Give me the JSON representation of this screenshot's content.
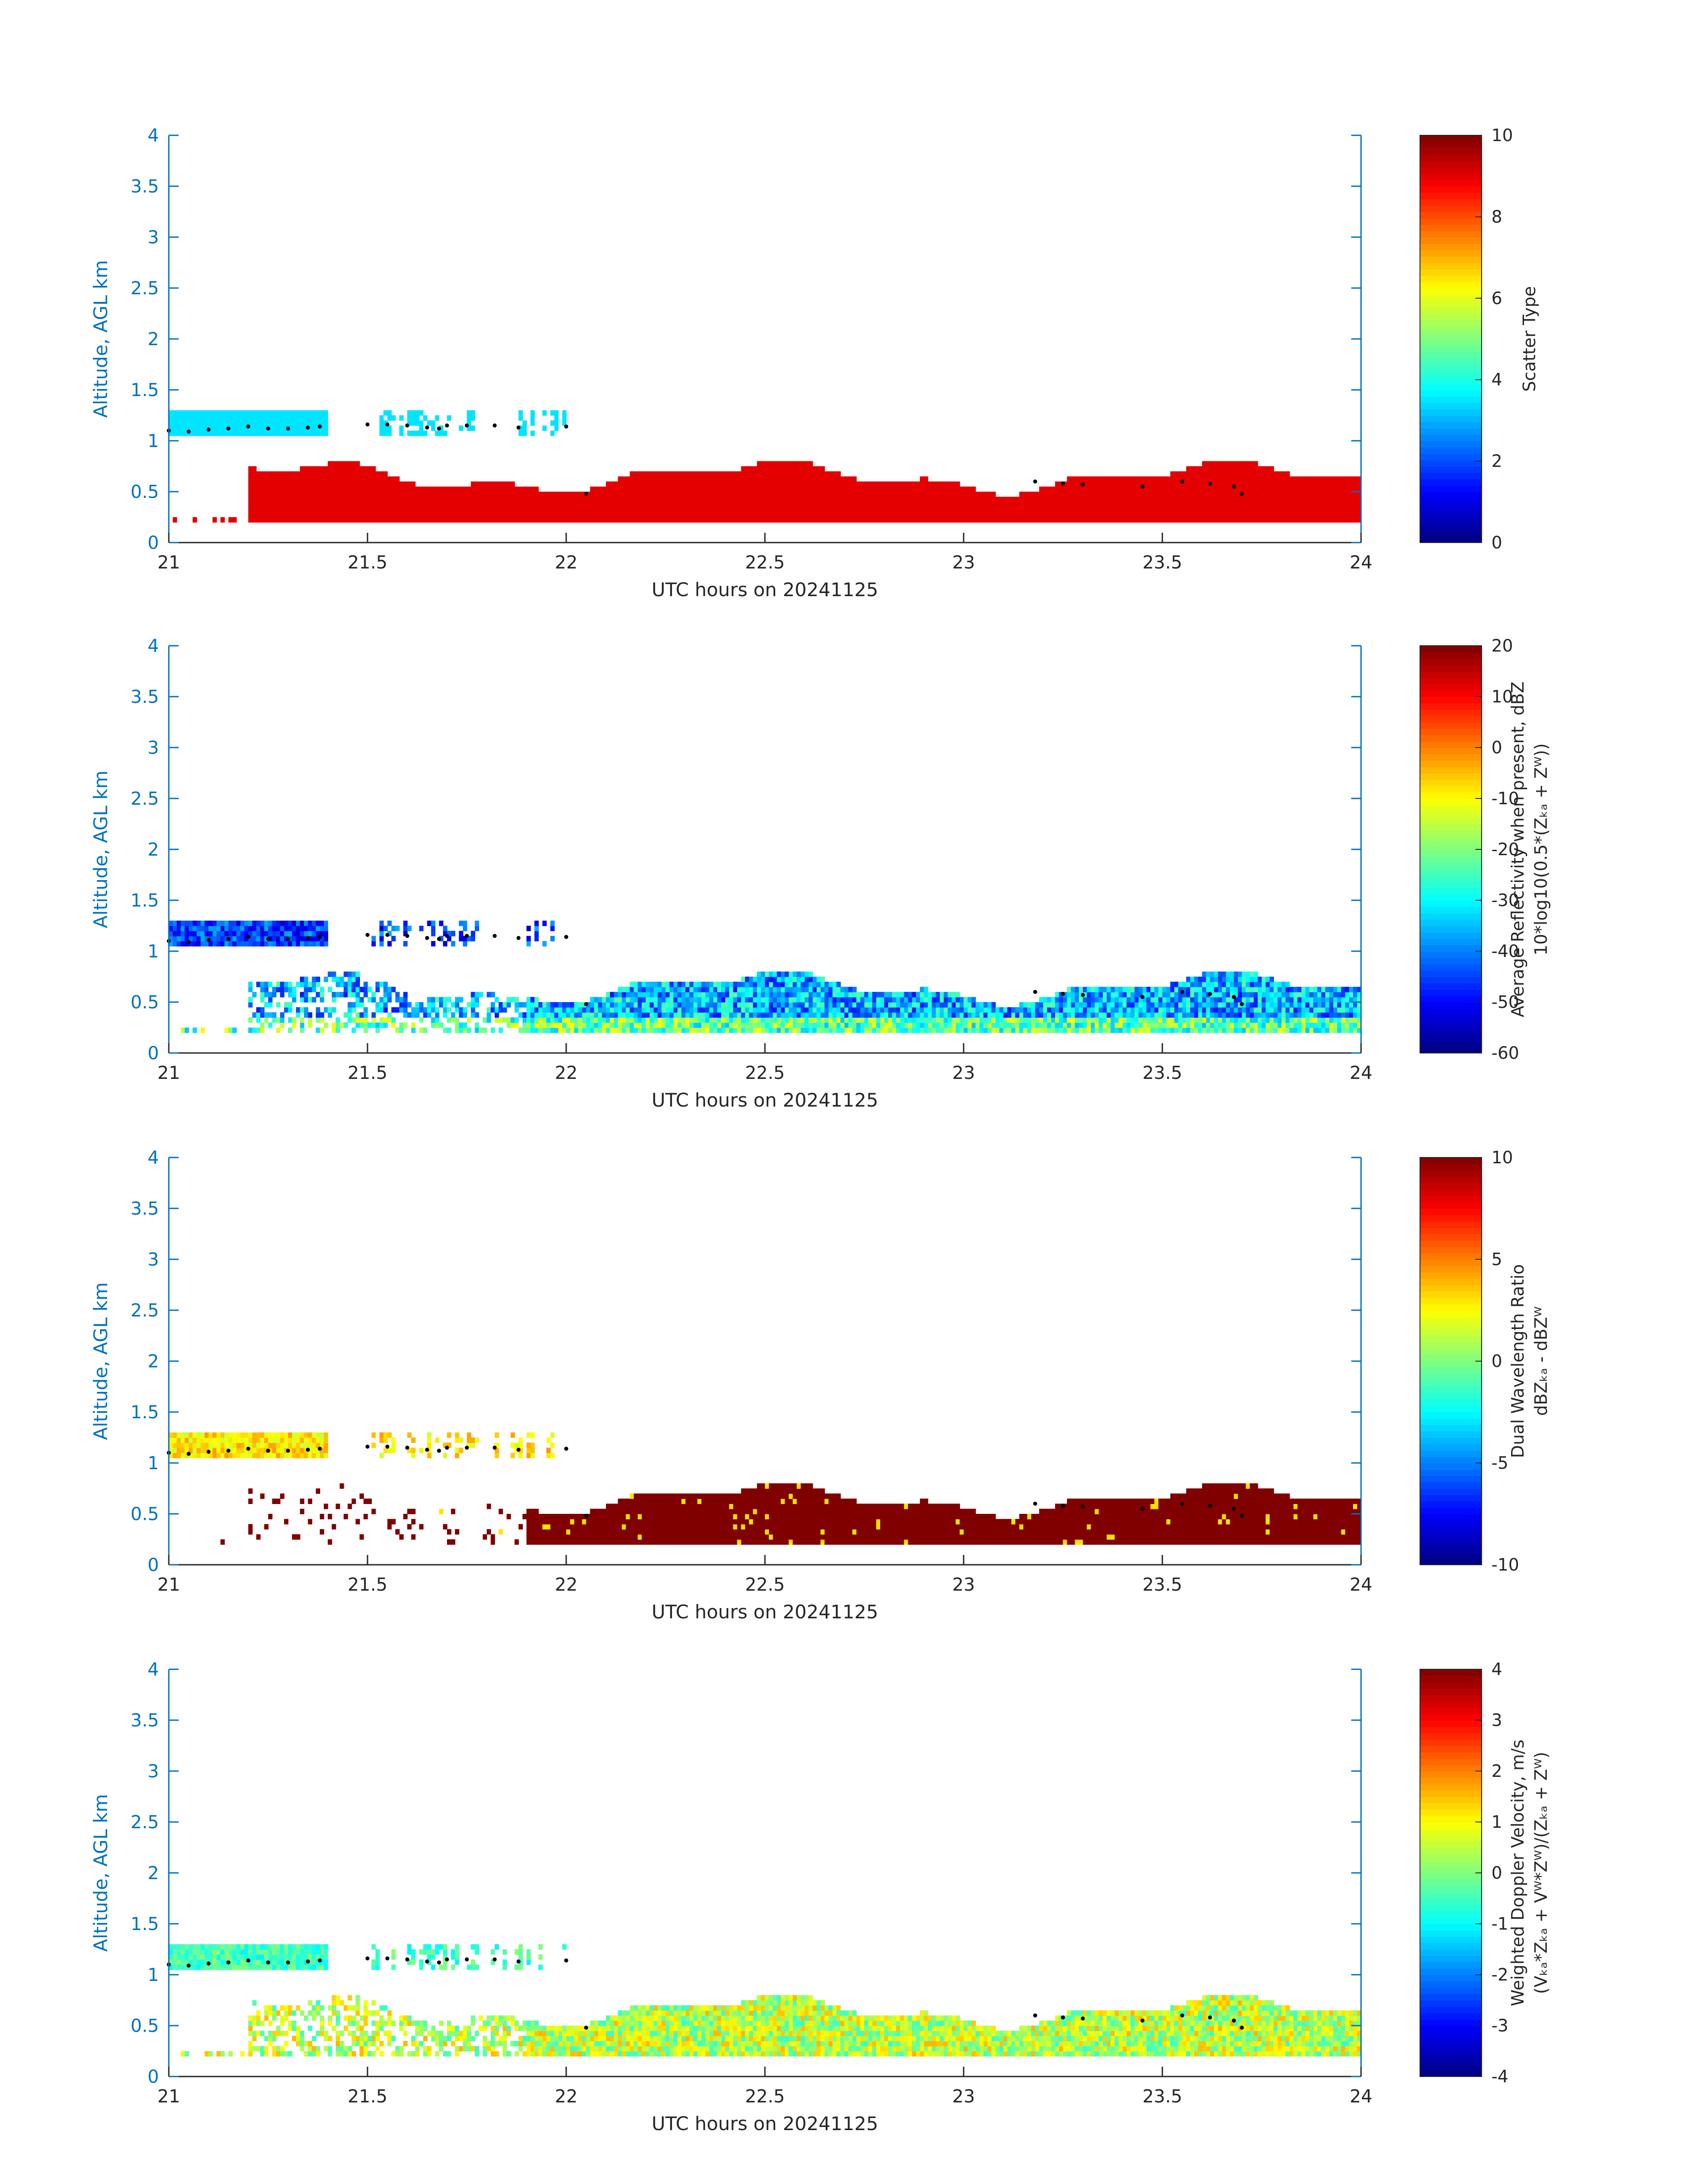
{
  "chart_data": [
    {
      "type": "heatmap",
      "xlabel": "UTC hours on 20241125",
      "ylabel": "Altitude, AGL km",
      "xlim": [
        21,
        24
      ],
      "ylim": [
        0,
        4
      ],
      "xticks": [
        "21",
        "21.5",
        "22",
        "22.5",
        "23",
        "23.5",
        "24"
      ],
      "yticks": [
        "0",
        "0.5",
        "1",
        "1.5",
        "2",
        "2.5",
        "3",
        "3.5",
        "4"
      ],
      "colorbar": {
        "label_lines": [
          "Scatter Type"
        ],
        "range": [
          0,
          10
        ],
        "ticks": [
          "0",
          "2",
          "4",
          "6",
          "8",
          "10"
        ],
        "colormap": "jet"
      },
      "dominant_values": [
        {
          "description": "near-surface echo 0.2-0.75 km",
          "value": 9
        },
        {
          "description": "cloud layer 1.0-1.3 km",
          "value": 3.5
        }
      ]
    },
    {
      "type": "heatmap",
      "xlabel": "UTC hours on 20241125",
      "ylabel": "Altitude, AGL km",
      "xlim": [
        21,
        24
      ],
      "ylim": [
        0,
        4
      ],
      "xticks": [
        "21",
        "21.5",
        "22",
        "22.5",
        "23",
        "23.5",
        "24"
      ],
      "yticks": [
        "0",
        "0.5",
        "1",
        "1.5",
        "2",
        "2.5",
        "3",
        "3.5",
        "4"
      ],
      "colorbar": {
        "label_lines": [
          "Average Reflectivity when present, dBZ",
          "10*log10(0.5*(Zₖₐ + Zᵂ))"
        ],
        "range": [
          -60,
          20
        ],
        "ticks": [
          "-60",
          "-50",
          "-40",
          "-30",
          "-20",
          "-10",
          "0",
          "10",
          "20"
        ],
        "colormap": "jet"
      },
      "dominant_values": [
        {
          "description": "near-surface echo 0.2-0.75 km",
          "value": -30
        },
        {
          "description": "cloud layer 1.0-1.3 km",
          "value": -45
        }
      ]
    },
    {
      "type": "heatmap",
      "xlabel": "UTC hours on 20241125",
      "ylabel": "Altitude, AGL km",
      "xlim": [
        21,
        24
      ],
      "ylim": [
        0,
        4
      ],
      "xticks": [
        "21",
        "21.5",
        "22",
        "22.5",
        "23",
        "23.5",
        "24"
      ],
      "yticks": [
        "0",
        "0.5",
        "1",
        "1.5",
        "2",
        "2.5",
        "3",
        "3.5",
        "4"
      ],
      "colorbar": {
        "label_lines": [
          "Dual Wavelength Ratio",
          "dBZₖₐ - dBZᵂ"
        ],
        "range": [
          -10,
          10
        ],
        "ticks": [
          "-10",
          "-5",
          "0",
          "5",
          "10"
        ],
        "colormap": "jet"
      },
      "dominant_values": [
        {
          "description": "near-surface echo 0.2-0.8 km",
          "value": 10
        },
        {
          "description": "cloud layer 1.0-1.3 km",
          "value": 3
        }
      ]
    },
    {
      "type": "heatmap",
      "xlabel": "UTC hours on 20241125",
      "ylabel": "Altitude, AGL km",
      "xlim": [
        21,
        24
      ],
      "ylim": [
        0,
        4
      ],
      "xticks": [
        "21",
        "21.5",
        "22",
        "22.5",
        "23",
        "23.5",
        "24"
      ],
      "yticks": [
        "0",
        "0.5",
        "1",
        "1.5",
        "2",
        "2.5",
        "3",
        "3.5",
        "4"
      ],
      "colorbar": {
        "label_lines": [
          "Weighted Doppler Velocity, m/s",
          "(Vₖₐ*Zₖₐ + Vᵂ*Zᵂ)/(Zₖₐ + Zᵂ)"
        ],
        "range": [
          -4,
          4
        ],
        "ticks": [
          "-4",
          "-3",
          "-2",
          "-1",
          "0",
          "1",
          "2",
          "3",
          "4"
        ],
        "colormap": "jet"
      },
      "dominant_values": [
        {
          "description": "near-surface echo 0.2-0.75 km",
          "value": 0.5
        },
        {
          "description": "cloud layer 1.0-1.3 km",
          "value": -0.5
        }
      ]
    }
  ],
  "overlay": {
    "marker_color": "#000000",
    "marker_style": "dots",
    "cloud_base_points": [
      [
        21.0,
        1.1
      ],
      [
        21.05,
        1.09
      ],
      [
        21.1,
        1.11
      ],
      [
        21.15,
        1.12
      ],
      [
        21.2,
        1.14
      ],
      [
        21.25,
        1.12
      ],
      [
        21.3,
        1.12
      ],
      [
        21.35,
        1.13
      ],
      [
        21.38,
        1.14
      ],
      [
        21.5,
        1.16
      ],
      [
        21.55,
        1.16
      ],
      [
        21.6,
        1.15
      ],
      [
        21.65,
        1.13
      ],
      [
        21.68,
        1.12
      ],
      [
        21.7,
        1.15
      ],
      [
        21.75,
        1.15
      ],
      [
        21.82,
        1.15
      ],
      [
        21.88,
        1.13
      ],
      [
        22.0,
        1.14
      ],
      [
        22.05,
        0.48
      ],
      [
        23.18,
        0.6
      ],
      [
        23.25,
        0.58
      ],
      [
        23.3,
        0.57
      ],
      [
        23.45,
        0.55
      ],
      [
        23.55,
        0.6
      ],
      [
        23.62,
        0.58
      ],
      [
        23.68,
        0.55
      ],
      [
        23.7,
        0.48
      ]
    ]
  }
}
